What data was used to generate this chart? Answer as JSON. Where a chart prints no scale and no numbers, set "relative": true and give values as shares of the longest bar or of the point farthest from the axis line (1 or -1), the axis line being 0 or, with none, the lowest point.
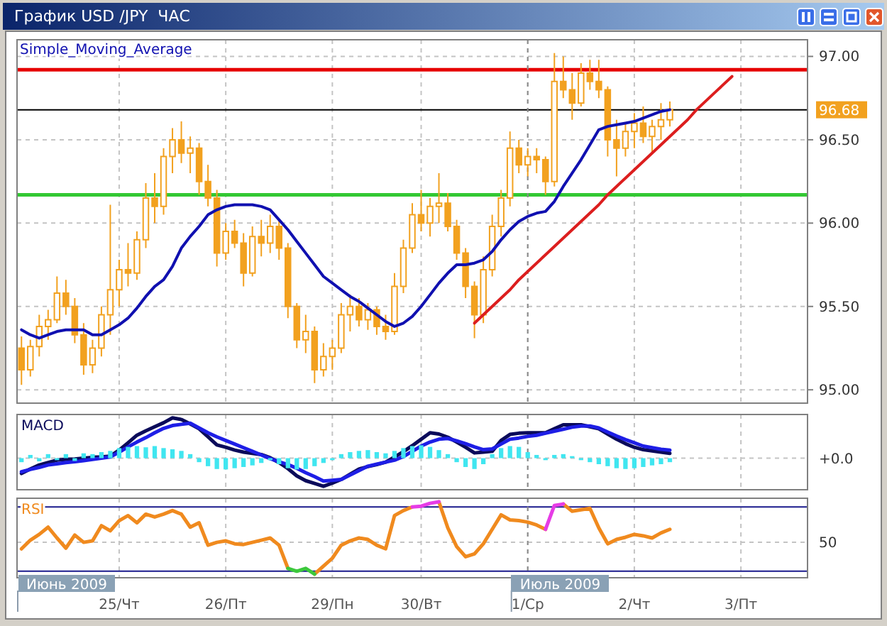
{
  "chart_data": [
    {
      "type": "candlestick",
      "title": "График USD /JPY  ЧАС",
      "categories": [
        null,
        null,
        null,
        null,
        null,
        null,
        null,
        null,
        null,
        null,
        null,
        "25/Чт",
        null,
        null,
        null,
        null,
        null,
        null,
        null,
        null,
        null,
        null,
        null,
        "26/Пт",
        null,
        null,
        null,
        null,
        null,
        null,
        null,
        null,
        null,
        null,
        null,
        "29/Пн",
        null,
        null,
        null,
        null,
        null,
        null,
        null,
        null,
        null,
        "30/Вт",
        null,
        null,
        null,
        null,
        null,
        null,
        null,
        null,
        null,
        null,
        null,
        "1/Ср",
        null,
        null,
        null,
        null,
        null,
        null,
        null,
        null,
        null,
        null,
        null,
        "2/Чт",
        null,
        null,
        null,
        null,
        null,
        null,
        null,
        null,
        null,
        null,
        null,
        "3/Пт",
        null,
        null,
        null,
        null,
        null,
        null,
        null
      ],
      "ohlc": [
        [
          95.25,
          95.32,
          95.03,
          95.12
        ],
        [
          95.12,
          95.3,
          95.08,
          95.26
        ],
        [
          95.26,
          95.45,
          95.2,
          95.38
        ],
        [
          95.38,
          95.48,
          95.3,
          95.42
        ],
        [
          95.42,
          95.68,
          95.4,
          95.58
        ],
        [
          95.58,
          95.66,
          95.45,
          95.5
        ],
        [
          95.5,
          95.55,
          95.28,
          95.33
        ],
        [
          95.33,
          95.4,
          95.09,
          95.15
        ],
        [
          95.15,
          95.3,
          95.1,
          95.25
        ],
        [
          95.25,
          95.5,
          95.2,
          95.45
        ],
        [
          95.45,
          96.11,
          95.33,
          95.6
        ],
        [
          95.6,
          95.78,
          95.5,
          95.72
        ],
        [
          95.72,
          95.88,
          95.62,
          95.7
        ],
        [
          95.7,
          95.95,
          95.66,
          95.9
        ],
        [
          95.9,
          96.24,
          95.85,
          96.15
        ],
        [
          96.15,
          96.3,
          96.0,
          96.1
        ],
        [
          96.1,
          96.45,
          96.05,
          96.4
        ],
        [
          96.4,
          96.57,
          96.3,
          96.5
        ],
        [
          96.5,
          96.61,
          96.36,
          96.42
        ],
        [
          96.42,
          96.52,
          96.3,
          96.45
        ],
        [
          96.45,
          96.48,
          96.17,
          96.25
        ],
        [
          96.25,
          96.35,
          96.1,
          96.15
        ],
        [
          96.15,
          96.2,
          95.74,
          95.82
        ],
        [
          95.82,
          96.0,
          95.78,
          95.95
        ],
        [
          95.95,
          96.02,
          95.85,
          95.88
        ],
        [
          95.88,
          95.94,
          95.62,
          95.7
        ],
        [
          95.7,
          95.98,
          95.68,
          95.92
        ],
        [
          95.92,
          96.02,
          95.8,
          95.88
        ],
        [
          95.88,
          96.05,
          95.82,
          95.98
        ],
        [
          95.98,
          96.02,
          95.78,
          95.85
        ],
        [
          95.85,
          95.88,
          95.43,
          95.5
        ],
        [
          95.5,
          95.52,
          95.25,
          95.3
        ],
        [
          95.3,
          95.45,
          95.22,
          95.35
        ],
        [
          95.35,
          95.38,
          95.04,
          95.12
        ],
        [
          95.12,
          95.28,
          95.08,
          95.2
        ],
        [
          95.2,
          95.3,
          95.12,
          95.25
        ],
        [
          95.25,
          95.52,
          95.22,
          95.45
        ],
        [
          95.45,
          95.57,
          95.35,
          95.5
        ],
        [
          95.5,
          95.55,
          95.38,
          95.42
        ],
        [
          95.42,
          95.52,
          95.36,
          95.48
        ],
        [
          95.48,
          95.5,
          95.33,
          95.38
        ],
        [
          95.38,
          95.45,
          95.3,
          95.35
        ],
        [
          95.35,
          95.7,
          95.33,
          95.62
        ],
        [
          95.62,
          95.9,
          95.58,
          95.85
        ],
        [
          95.85,
          96.12,
          95.82,
          96.05
        ],
        [
          96.05,
          96.2,
          95.95,
          96.0
        ],
        [
          96.0,
          96.15,
          95.92,
          96.1
        ],
        [
          96.1,
          96.3,
          96.0,
          96.12
        ],
        [
          96.12,
          96.18,
          95.95,
          95.98
        ],
        [
          95.98,
          96.02,
          95.78,
          95.82
        ],
        [
          95.82,
          95.85,
          95.55,
          95.62
        ],
        [
          95.62,
          95.65,
          95.31,
          95.45
        ],
        [
          95.45,
          95.8,
          95.4,
          95.72
        ],
        [
          95.72,
          96.05,
          95.68,
          95.98
        ],
        [
          95.98,
          96.2,
          95.92,
          96.15
        ],
        [
          96.15,
          96.55,
          96.1,
          96.45
        ],
        [
          96.45,
          96.5,
          96.3,
          96.35
        ],
        [
          96.35,
          96.45,
          96.28,
          96.4
        ],
        [
          96.4,
          96.45,
          96.3,
          96.38
        ],
        [
          96.38,
          96.4,
          96.17,
          96.25
        ],
        [
          96.25,
          97.02,
          96.22,
          96.85
        ],
        [
          96.85,
          97.0,
          96.75,
          96.8
        ],
        [
          96.8,
          96.9,
          96.62,
          96.72
        ],
        [
          96.72,
          96.96,
          96.7,
          96.9
        ],
        [
          96.9,
          96.98,
          96.8,
          96.85
        ],
        [
          96.85,
          96.98,
          96.75,
          96.8
        ],
        [
          96.8,
          96.82,
          96.4,
          96.5
        ],
        [
          96.5,
          96.62,
          96.28,
          96.45
        ],
        [
          96.45,
          96.6,
          96.4,
          96.55
        ],
        [
          96.55,
          96.66,
          96.45,
          96.6
        ],
        [
          96.6,
          96.7,
          96.48,
          96.52
        ],
        [
          96.52,
          96.62,
          96.42,
          96.58
        ],
        [
          96.58,
          96.72,
          96.5,
          96.62
        ],
        [
          96.62,
          96.73,
          96.58,
          96.68
        ],
        null,
        null,
        null,
        null,
        null,
        null,
        null,
        null,
        null,
        null,
        null,
        null,
        null,
        null,
        null
      ],
      "color": "#f2a11f",
      "series": [
        {
          "name": "Simple_Moving_Average",
          "type": "line",
          "color": "#1010b0",
          "values": [
            95.36,
            95.33,
            95.31,
            95.33,
            95.35,
            95.36,
            95.36,
            95.36,
            95.33,
            95.33,
            95.36,
            95.39,
            95.43,
            95.49,
            95.56,
            95.62,
            95.66,
            95.74,
            95.85,
            95.92,
            95.98,
            96.05,
            96.08,
            96.1,
            96.11,
            96.11,
            96.11,
            96.1,
            96.08,
            96.02,
            95.96,
            95.89,
            95.82,
            95.75,
            95.68,
            95.64,
            95.6,
            95.56,
            95.53,
            95.49,
            95.45,
            95.41,
            95.38,
            95.4,
            95.44,
            95.5,
            95.57,
            95.64,
            95.7,
            95.75,
            95.75,
            95.76,
            95.78,
            95.83,
            95.9,
            95.96,
            96.01,
            96.04,
            96.06,
            96.07,
            96.13,
            96.22,
            96.3,
            96.38,
            96.47,
            96.56,
            96.58,
            96.59,
            96.6,
            96.61,
            96.63,
            96.65,
            96.67,
            96.68,
            null,
            null,
            null,
            null,
            null,
            null,
            null,
            null,
            null,
            null,
            null,
            null,
            null,
            null,
            null
          ]
        },
        {
          "type": "line",
          "color": "#dc1e1e",
          "values": [
            null,
            null,
            null,
            null,
            null,
            null,
            null,
            null,
            null,
            null,
            null,
            null,
            null,
            null,
            null,
            null,
            null,
            null,
            null,
            null,
            null,
            null,
            null,
            null,
            null,
            null,
            null,
            null,
            null,
            null,
            null,
            null,
            null,
            null,
            null,
            null,
            null,
            null,
            null,
            null,
            null,
            null,
            null,
            null,
            null,
            null,
            null,
            null,
            null,
            null,
            null,
            95.4,
            95.45,
            95.5,
            95.55,
            95.6,
            95.66,
            95.71,
            95.76,
            95.81,
            95.86,
            95.91,
            95.96,
            96.01,
            96.06,
            96.11,
            96.17,
            96.22,
            96.27,
            96.32,
            96.37,
            96.42,
            96.47,
            96.52,
            96.57,
            96.62,
            96.68,
            96.73,
            96.78,
            96.83,
            96.88,
            null,
            null,
            null,
            null,
            null,
            null,
            null,
            null
          ]
        }
      ],
      "ylim": [
        94.92,
        97.1
      ],
      "yticks": [
        {
          "value": 95,
          "label": "95.00"
        },
        {
          "value": 95.5,
          "label": "95.50"
        },
        {
          "value": 96,
          "label": "96.00"
        },
        {
          "value": 96.5,
          "label": "96.50"
        },
        {
          "value": 97,
          "label": "97.00"
        }
      ],
      "ref_lines": [
        {
          "axis": "y",
          "value": 96.92,
          "color": "#e60000"
        },
        {
          "axis": "y",
          "value": 96.68,
          "label": "96.68",
          "color": "#000000"
        },
        {
          "axis": "y",
          "value": 96.17,
          "color": "#33c833"
        },
        {
          "axis": "x",
          "value": "1/Ср",
          "color": "#8c8c8c",
          "line_style": "dashed"
        }
      ],
      "grid": true,
      "legend": "top left",
      "tick_labels": "y"
    },
    {
      "type": "line",
      "title": "MACD",
      "relative": true,
      "categories": [
        null,
        null,
        null,
        null,
        null,
        null,
        null,
        null,
        null,
        null,
        null,
        "25/Чт",
        null,
        null,
        null,
        null,
        null,
        null,
        null,
        null,
        null,
        null,
        null,
        "26/Пт",
        null,
        null,
        null,
        null,
        null,
        null,
        null,
        null,
        null,
        null,
        null,
        "29/Пн",
        null,
        null,
        null,
        null,
        null,
        null,
        null,
        null,
        null,
        "30/Вт",
        null,
        null,
        null,
        null,
        null,
        null,
        null,
        null,
        null,
        null,
        null,
        "1/Ср",
        null,
        null,
        null,
        null,
        null,
        null,
        null,
        null,
        null,
        null,
        null,
        "2/Чт",
        null,
        null,
        null,
        null,
        null,
        null,
        null,
        null,
        null,
        null,
        null,
        "3/Пт",
        null,
        null,
        null,
        null,
        null,
        null,
        null
      ],
      "series": [
        {
          "type": "line",
          "color": "#0a0a5a",
          "values": [
            -0.38,
            -0.27,
            -0.17,
            -0.11,
            -0.05,
            -0.03,
            -0.02,
            0.0,
            0.02,
            0.03,
            0.05,
            0.2,
            0.38,
            0.57,
            0.68,
            0.78,
            0.88,
            1.0,
            0.96,
            0.85,
            0.73,
            0.53,
            0.33,
            0.27,
            0.2,
            0.15,
            0.12,
            0.09,
            0.01,
            -0.11,
            -0.26,
            -0.44,
            -0.56,
            -0.63,
            -0.7,
            -0.62,
            -0.53,
            -0.4,
            -0.27,
            -0.21,
            -0.16,
            -0.1,
            0.03,
            0.16,
            0.31,
            0.47,
            0.63,
            0.6,
            0.52,
            0.4,
            0.27,
            0.13,
            0.15,
            0.17,
            0.44,
            0.59,
            0.62,
            0.63,
            0.63,
            0.63,
            0.73,
            0.83,
            0.83,
            0.83,
            0.78,
            0.73,
            0.6,
            0.47,
            0.36,
            0.27,
            0.21,
            0.18,
            0.15,
            0.12,
            null,
            null,
            null,
            null,
            null,
            null,
            null,
            null,
            null,
            null,
            null,
            null,
            null,
            null,
            null
          ]
        },
        {
          "type": "line",
          "color": "#1e1ee6",
          "values": [
            -0.34,
            -0.28,
            -0.23,
            -0.17,
            -0.14,
            -0.11,
            -0.09,
            -0.06,
            -0.03,
            0.0,
            0.03,
            0.15,
            0.28,
            0.4,
            0.51,
            0.63,
            0.74,
            0.81,
            0.84,
            0.87,
            0.75,
            0.63,
            0.53,
            0.44,
            0.35,
            0.26,
            0.17,
            0.08,
            -0.01,
            -0.09,
            -0.16,
            -0.25,
            -0.36,
            -0.46,
            -0.57,
            -0.55,
            -0.53,
            -0.42,
            -0.31,
            -0.2,
            -0.15,
            -0.1,
            -0.05,
            0.04,
            0.17,
            0.3,
            0.4,
            0.47,
            0.49,
            0.43,
            0.36,
            0.28,
            0.21,
            0.23,
            0.35,
            0.47,
            0.5,
            0.54,
            0.57,
            0.62,
            0.67,
            0.72,
            0.77,
            0.8,
            0.8,
            0.75,
            0.65,
            0.55,
            0.46,
            0.38,
            0.3,
            0.26,
            0.22,
            0.2,
            null,
            null,
            null,
            null,
            null,
            null,
            null,
            null,
            null,
            null,
            null,
            null,
            null,
            null,
            null
          ]
        },
        {
          "type": "bar",
          "color": "#40e6f0",
          "values": [
            -0.1,
            0.08,
            -0.08,
            0.1,
            -0.05,
            0.1,
            -0.07,
            0.12,
            0.1,
            0.15,
            0.18,
            0.25,
            0.28,
            0.3,
            0.27,
            0.3,
            0.25,
            0.22,
            0.18,
            0.1,
            -0.1,
            -0.2,
            -0.27,
            -0.28,
            -0.25,
            -0.22,
            -0.18,
            -0.12,
            -0.05,
            -0.15,
            -0.25,
            -0.28,
            -0.27,
            -0.2,
            -0.12,
            -0.05,
            0.1,
            0.15,
            0.18,
            0.2,
            0.15,
            0.12,
            0.18,
            0.25,
            0.3,
            0.32,
            0.28,
            0.2,
            0.1,
            -0.1,
            -0.22,
            -0.27,
            -0.15,
            0.1,
            0.25,
            0.3,
            0.28,
            0.15,
            0.08,
            -0.05,
            0.08,
            0.1,
            0.05,
            -0.05,
            -0.1,
            -0.15,
            -0.2,
            -0.25,
            -0.27,
            -0.25,
            -0.22,
            -0.18,
            -0.15,
            -0.1,
            null,
            null,
            null,
            null,
            null,
            null,
            null,
            null,
            null,
            null,
            null,
            null,
            null,
            null,
            null
          ]
        }
      ],
      "ref_lines": [
        {
          "axis": "y",
          "value": 0,
          "label": "+0.0",
          "color": "#c4c4c4",
          "line_style": "dashed"
        },
        {
          "axis": "x",
          "value": "1/Ср",
          "color": "#8c8c8c",
          "line_style": "dashed"
        }
      ],
      "grid": "x",
      "tick_labels": false
    },
    {
      "type": "line",
      "title": "RSI",
      "relative": true,
      "categories": [
        null,
        null,
        null,
        null,
        null,
        null,
        null,
        null,
        null,
        null,
        null,
        "25/Чт",
        null,
        null,
        null,
        null,
        null,
        null,
        null,
        null,
        null,
        null,
        null,
        "26/Пт",
        null,
        null,
        null,
        null,
        null,
        null,
        null,
        null,
        null,
        null,
        null,
        "29/Пн",
        null,
        null,
        null,
        null,
        null,
        null,
        null,
        null,
        null,
        "30/Вт",
        null,
        null,
        null,
        null,
        null,
        null,
        null,
        null,
        null,
        null,
        null,
        "1/Ср",
        null,
        null,
        null,
        null,
        null,
        null,
        null,
        null,
        null,
        null,
        null,
        "2/Чт",
        null,
        null,
        null,
        null,
        null,
        null,
        null,
        null,
        null,
        null,
        null,
        "3/Пт",
        null,
        null,
        null,
        null,
        null,
        null,
        null
      ],
      "series": [
        {
          "type": "line",
          "color": "#f08a1e",
          "values": [
            0.35,
            0.47,
            0.55,
            0.65,
            0.5,
            0.36,
            0.54,
            0.44,
            0.46,
            0.67,
            0.6,
            0.74,
            0.81,
            0.71,
            0.83,
            0.79,
            0.83,
            0.88,
            0.83,
            0.65,
            0.71,
            0.4,
            0.44,
            0.46,
            0.42,
            0.41,
            0.44,
            0.47,
            0.5,
            0.4,
            0.08,
            null,
            null,
            0.0,
            0.11,
            0.22,
            0.4,
            0.46,
            0.5,
            0.48,
            0.4,
            0.35,
            0.81,
            0.88,
            0.93,
            null,
            null,
            1.0,
            0.64,
            0.38,
            0.24,
            0.28,
            0.42,
            0.62,
            0.82,
            0.75,
            0.74,
            0.72,
            0.68,
            0.62,
            null,
            0.97,
            0.87,
            0.89,
            0.91,
            0.64,
            0.42,
            0.48,
            0.51,
            0.55,
            0.53,
            0.5,
            0.57,
            0.62,
            null,
            null,
            null,
            null,
            null,
            null,
            null,
            null,
            null,
            null,
            null,
            null,
            null,
            null,
            null
          ]
        },
        {
          "type": "line",
          "color": "#e63ce6",
          "values": [
            null,
            null,
            null,
            null,
            null,
            null,
            null,
            null,
            null,
            null,
            null,
            null,
            null,
            null,
            null,
            null,
            null,
            null,
            null,
            null,
            null,
            null,
            null,
            null,
            null,
            null,
            null,
            null,
            null,
            null,
            null,
            null,
            null,
            null,
            null,
            null,
            null,
            null,
            null,
            null,
            null,
            null,
            null,
            null,
            0.93,
            0.94,
            0.98,
            1.0,
            null,
            null,
            null,
            null,
            null,
            null,
            null,
            null,
            null,
            null,
            null,
            0.62,
            0.95,
            0.97,
            null,
            null,
            null,
            null,
            null,
            null,
            null,
            null,
            null,
            null,
            null,
            null,
            null,
            null,
            null,
            null,
            null,
            null,
            null,
            null,
            null,
            null,
            null,
            null,
            null,
            null,
            null
          ]
        },
        {
          "type": "line",
          "color": "#3cc83c",
          "values": [
            null,
            null,
            null,
            null,
            null,
            null,
            null,
            null,
            null,
            null,
            null,
            null,
            null,
            null,
            null,
            null,
            null,
            null,
            null,
            null,
            null,
            null,
            null,
            null,
            null,
            null,
            null,
            null,
            null,
            null,
            0.08,
            0.04,
            0.08,
            0.0,
            null,
            null,
            null,
            null,
            null,
            null,
            null,
            null,
            null,
            null,
            null,
            null,
            null,
            null,
            null,
            null,
            null,
            null,
            null,
            null,
            null,
            null,
            null,
            null,
            null,
            null,
            null,
            null,
            null,
            null,
            null,
            null,
            null,
            null,
            null,
            null,
            null,
            null,
            null,
            null,
            null,
            null,
            null,
            null,
            null,
            null,
            null,
            null,
            null,
            null,
            null,
            null,
            null,
            null,
            null
          ]
        }
      ],
      "ref_lines": [
        {
          "axis": "y",
          "value": 0.93,
          "color": "#1a1a8c"
        },
        {
          "axis": "y",
          "value": 0.04,
          "color": "#1a1a8c"
        },
        {
          "axis": "y",
          "value": 0.44,
          "color": "#c4c4c4",
          "line_style": "dashed"
        },
        {
          "axis": "x",
          "value": "1/Ср",
          "label": "Июль 2009",
          "color": "#8c8c8c",
          "line_style": "dashed"
        }
      ],
      "annotations": [
        "Июнь 2009",
        "50"
      ],
      "grid": "x",
      "tick_labels": "x"
    }
  ]
}
